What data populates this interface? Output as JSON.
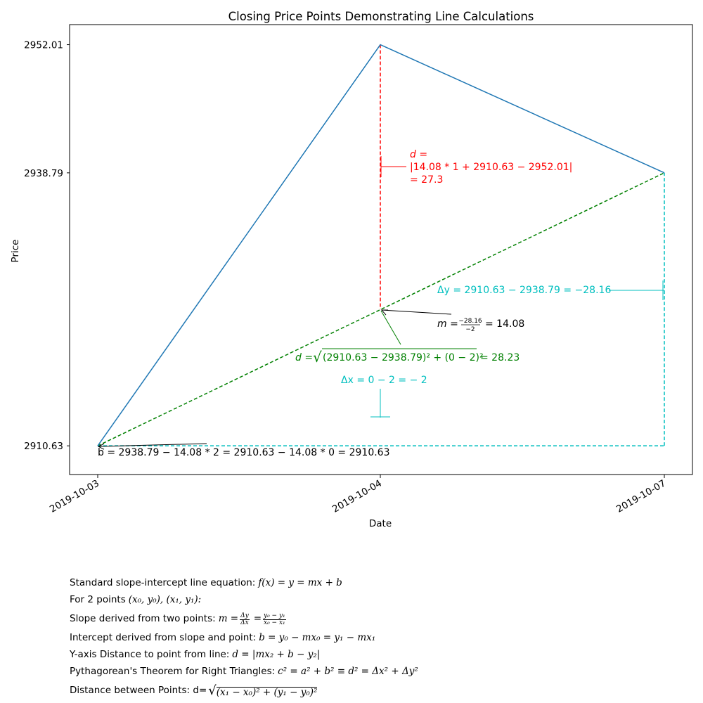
{
  "chart_data": {
    "type": "line",
    "title": "Closing Price Points Demonstrating Line Calculations",
    "xlabel": "Date",
    "ylabel": "Price",
    "x": [
      "2019-10-03",
      "2019-10-04",
      "2019-10-07"
    ],
    "y": [
      2910.63,
      2952.01,
      2938.79
    ],
    "yticks": [
      "2952.01",
      "2938.79",
      "2910.63"
    ],
    "ylim": [
      2907.67,
      2954.08
    ],
    "grid": false,
    "series": [
      {
        "values": [
          2910.63,
          2952.01,
          2938.79
        ]
      }
    ],
    "overlays": [
      {
        "kind": "line",
        "label_key": "fit",
        "from": [
          "2019-10-03",
          2910.63
        ],
        "to": [
          "2019-10-07",
          2938.79
        ],
        "style": "dashed",
        "color": "#008000"
      },
      {
        "kind": "line",
        "label_key": "vertical-distance",
        "from": [
          "2019-10-04",
          2952.01
        ],
        "to": [
          "2019-10-04",
          2924.71
        ],
        "style": "dashed",
        "color": "#ff0000"
      },
      {
        "kind": "line",
        "label_key": "delta-x",
        "from": [
          "2019-10-03",
          2910.63
        ],
        "to": [
          "2019-10-07",
          2910.63
        ],
        "style": "dashed",
        "color": "#00bfbf"
      },
      {
        "kind": "line",
        "label_key": "delta-y",
        "from": [
          "2019-10-07",
          2910.63
        ],
        "to": [
          "2019-10-07",
          2938.79
        ],
        "style": "dashed",
        "color": "#00bfbf"
      }
    ],
    "annotations": {
      "d_label": "d =",
      "d_expr": "|14.08 * 1 + 2910.63 − 2952.01|",
      "d_value": "= 27.3",
      "delta_y": "Δy = 2910.63 − 2938.79 = −28.16",
      "m_prefix": "m =",
      "m_num": "−28.16",
      "m_den": "−2",
      "m_value": "= 14.08",
      "dist_prefix": "d =",
      "dist_body": "(2910.63 − 2938.79)² + (0 − 2)²",
      "dist_value": "= 28.23",
      "delta_x": "Δx = 0 − 2 = − 2",
      "b_expr": "b = 2938.79 − 14.08 * 2 = 2910.63 − 14.08 * 0 = 2910.63"
    },
    "colors": {
      "series": "#1f77b4",
      "fit": "#008000",
      "distance": "#ff0000",
      "delta": "#00bfbf",
      "text": "#000000"
    }
  },
  "footer": {
    "line1_text": "Standard slope-intercept line equation:",
    "line1_math": "f(x) = y = mx + b",
    "line2_text": "For 2 points",
    "line2_math": "(x₀, y₀), (x₁, y₁):",
    "line3_text": "Slope derived from two points:",
    "line3_m": "m =",
    "line3_f1_num": "Δy",
    "line3_f1_den": "Δx",
    "line3_eq": "=",
    "line3_f2_num": "y₀ − y₁",
    "line3_f2_den": "x₀ − x₁",
    "line4_text": "Intercept derived from slope and point:",
    "line4_math": "b = y₀ − mx₀ = y₁ − mx₁",
    "line5_text": "Y-axis Distance to point from line:",
    "line5_math": "d = |mx₂ + b − y₂|",
    "line6_text": "Pythagorean's Theorem for Right Triangles:",
    "line6_math": "c² = a² + b² ≡  d² = Δx² + Δy²",
    "line7_text": "Distance between Points: d=",
    "line7_math": "(x₁ − x₀)² + (y₁ − y₀)²"
  }
}
